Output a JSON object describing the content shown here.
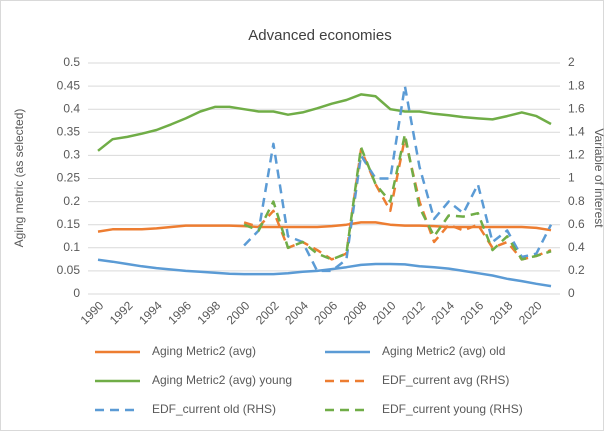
{
  "chart_data": {
    "type": "line",
    "title": "Advanced economies",
    "y_label": "Aging metric (as selected)",
    "y2_label": "Variable of interest",
    "x": [
      1990,
      1991,
      1992,
      1993,
      1994,
      1995,
      1996,
      1997,
      1998,
      1999,
      2000,
      2001,
      2002,
      2003,
      2004,
      2005,
      2006,
      2007,
      2008,
      2009,
      2010,
      2011,
      2012,
      2013,
      2014,
      2015,
      2016,
      2017,
      2018,
      2019,
      2020,
      2021
    ],
    "xlim": [
      1990,
      2021
    ],
    "xticks": [
      1990,
      1992,
      1994,
      1996,
      1998,
      2000,
      2002,
      2004,
      2006,
      2008,
      2010,
      2012,
      2014,
      2016,
      2018,
      2020
    ],
    "ylim": [
      0,
      0.5
    ],
    "yticks": [
      0,
      0.05,
      0.1,
      0.15,
      0.2,
      0.25,
      0.3,
      0.35,
      0.4,
      0.45,
      0.5
    ],
    "y2lim": [
      0,
      2
    ],
    "y2ticks": [
      0,
      0.2,
      0.4,
      0.6,
      0.8,
      1,
      1.2,
      1.4,
      1.6,
      1.8,
      2
    ],
    "grid": true,
    "series": [
      {
        "name": "Aging Metric2 (avg)",
        "color": "#ED7D31",
        "dash": false,
        "values": [
          0.135,
          0.14,
          0.14,
          0.14,
          0.142,
          0.145,
          0.148,
          0.148,
          0.148,
          0.148,
          0.147,
          0.145,
          0.145,
          0.145,
          0.145,
          0.145,
          0.147,
          0.15,
          0.155,
          0.155,
          0.15,
          0.148,
          0.148,
          0.147,
          0.145,
          0.145,
          0.145,
          0.145,
          0.145,
          0.145,
          0.143,
          0.138
        ]
      },
      {
        "name": "Aging Metric2 (avg) old",
        "color": "#5B9BD5",
        "dash": false,
        "values": [
          0.074,
          0.07,
          0.065,
          0.06,
          0.056,
          0.053,
          0.05,
          0.048,
          0.046,
          0.044,
          0.043,
          0.043,
          0.043,
          0.045,
          0.048,
          0.05,
          0.054,
          0.058,
          0.063,
          0.065,
          0.065,
          0.064,
          0.06,
          0.058,
          0.055,
          0.05,
          0.045,
          0.04,
          0.033,
          0.028,
          0.022,
          0.017
        ]
      },
      {
        "name": "Aging Metric2 (avg) young",
        "color": "#70AD47",
        "dash": false,
        "values": [
          0.31,
          0.335,
          0.34,
          0.347,
          0.355,
          0.367,
          0.38,
          0.395,
          0.405,
          0.405,
          0.4,
          0.395,
          0.395,
          0.388,
          0.393,
          0.402,
          0.412,
          0.42,
          0.432,
          0.428,
          0.4,
          0.395,
          0.395,
          0.39,
          0.387,
          0.383,
          0.38,
          0.378,
          0.385,
          0.393,
          0.385,
          0.368
        ]
      },
      {
        "name": "EDF_current avg (RHS)",
        "color": "#ED7D31",
        "dash": true,
        "axis": "y2",
        "values": [
          null,
          null,
          null,
          null,
          null,
          null,
          null,
          null,
          null,
          null,
          0.62,
          0.58,
          0.72,
          0.4,
          0.45,
          0.38,
          0.3,
          0.35,
          1.25,
          0.95,
          0.72,
          1.35,
          0.8,
          0.45,
          0.6,
          0.55,
          0.6,
          0.4,
          0.45,
          0.3,
          0.33,
          0.38
        ]
      },
      {
        "name": "EDF_current old (RHS)",
        "color": "#5B9BD5",
        "dash": true,
        "axis": "y2",
        "values": [
          null,
          null,
          null,
          null,
          null,
          null,
          null,
          null,
          null,
          null,
          0.42,
          0.55,
          1.3,
          0.5,
          0.45,
          0.2,
          0.2,
          0.3,
          1.2,
          1.0,
          1.0,
          1.8,
          1.1,
          0.65,
          0.8,
          0.7,
          0.95,
          0.45,
          0.55,
          0.32,
          0.35,
          0.6
        ]
      },
      {
        "name": "EDF_current young (RHS)",
        "color": "#70AD47",
        "dash": true,
        "axis": "y2",
        "values": [
          null,
          null,
          null,
          null,
          null,
          null,
          null,
          null,
          null,
          null,
          0.6,
          0.55,
          0.8,
          0.4,
          0.45,
          0.35,
          0.3,
          0.35,
          1.27,
          0.95,
          0.8,
          1.38,
          0.75,
          0.5,
          0.68,
          0.67,
          0.7,
          0.38,
          0.5,
          0.3,
          0.33,
          0.37
        ]
      }
    ]
  }
}
